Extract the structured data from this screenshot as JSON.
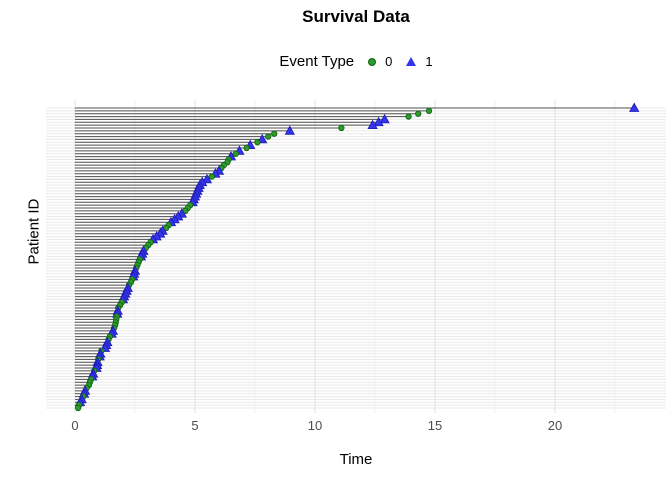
{
  "title": "Survival Data",
  "legend": {
    "title": "Event Type",
    "items": [
      {
        "label": "0",
        "marker": "circle-icon",
        "color": "#2c9b2c"
      },
      {
        "label": "1",
        "marker": "triangle-icon",
        "color": "#3434ef"
      }
    ]
  },
  "axes": {
    "x_label": "Time",
    "y_label": "Patient ID",
    "x_ticks": [
      0,
      5,
      10,
      15,
      20
    ],
    "x_minor_ticks": [
      2.5,
      7.5,
      12.5,
      17.5,
      22.5
    ],
    "y_tick_labels_hidden": true
  },
  "colors": {
    "event0": "#2c9b2c",
    "event0_stroke": "#156615",
    "event1": "#3434ef",
    "event1_stroke": "#1e1eb4",
    "segment": "#4f4f4f",
    "grid_major": "#e2e2e2",
    "grid_minor": "#efefef",
    "grid_row": "#e9e9e9",
    "tick_text": "#4d4d4d",
    "background": "#ffffff"
  },
  "chart_data": {
    "type": "scatter",
    "subtype": "event-segment-plot (horizontal line per patient from 0 to event time, marker at end)",
    "title": "Survival Data",
    "xlabel": "Time",
    "ylabel": "Patient ID",
    "xlim": [
      0,
      24.6
    ],
    "x_ticks": [
      0,
      5,
      10,
      15,
      20
    ],
    "legend_position": "top",
    "grid": true,
    "n_patients": 106,
    "columns": [
      "time",
      "event_type"
    ],
    "order": "rows listed top of plot (longest time) to bottom (shortest time)",
    "patients": [
      [
        23.3,
        1
      ],
      [
        14.75,
        0
      ],
      [
        14.3,
        0
      ],
      [
        13.9,
        0
      ],
      [
        12.9,
        1
      ],
      [
        12.65,
        1
      ],
      [
        12.4,
        1
      ],
      [
        11.1,
        0
      ],
      [
        8.95,
        1
      ],
      [
        8.3,
        0
      ],
      [
        8.05,
        0
      ],
      [
        7.8,
        1
      ],
      [
        7.6,
        0
      ],
      [
        7.3,
        1
      ],
      [
        7.15,
        0
      ],
      [
        6.85,
        1
      ],
      [
        6.7,
        0
      ],
      [
        6.5,
        1
      ],
      [
        6.4,
        0
      ],
      [
        6.35,
        0
      ],
      [
        6.2,
        0
      ],
      [
        6.1,
        0
      ],
      [
        6.0,
        1
      ],
      [
        5.85,
        1
      ],
      [
        5.7,
        0
      ],
      [
        5.5,
        1
      ],
      [
        5.3,
        1
      ],
      [
        5.2,
        1
      ],
      [
        5.15,
        1
      ],
      [
        5.1,
        1
      ],
      [
        5.05,
        1
      ],
      [
        5.0,
        1
      ],
      [
        4.95,
        1
      ],
      [
        4.9,
        1
      ],
      [
        4.8,
        0
      ],
      [
        4.7,
        0
      ],
      [
        4.6,
        0
      ],
      [
        4.45,
        1
      ],
      [
        4.3,
        1
      ],
      [
        4.15,
        1
      ],
      [
        4.0,
        1
      ],
      [
        3.9,
        0
      ],
      [
        3.8,
        0
      ],
      [
        3.65,
        1
      ],
      [
        3.55,
        1
      ],
      [
        3.4,
        1
      ],
      [
        3.25,
        1
      ],
      [
        3.15,
        0
      ],
      [
        3.05,
        0
      ],
      [
        2.95,
        0
      ],
      [
        2.85,
        1
      ],
      [
        2.8,
        1
      ],
      [
        2.75,
        1
      ],
      [
        2.7,
        0
      ],
      [
        2.65,
        0
      ],
      [
        2.6,
        0
      ],
      [
        2.55,
        0
      ],
      [
        2.5,
        1
      ],
      [
        2.47,
        1
      ],
      [
        2.43,
        1
      ],
      [
        2.38,
        0
      ],
      [
        2.33,
        0
      ],
      [
        2.25,
        0
      ],
      [
        2.2,
        1
      ],
      [
        2.15,
        1
      ],
      [
        2.1,
        1
      ],
      [
        2.05,
        1
      ],
      [
        2.0,
        1
      ],
      [
        1.95,
        0
      ],
      [
        1.88,
        0
      ],
      [
        1.8,
        0
      ],
      [
        1.78,
        1
      ],
      [
        1.76,
        1
      ],
      [
        1.74,
        0
      ],
      [
        1.72,
        0
      ],
      [
        1.7,
        0
      ],
      [
        1.67,
        0
      ],
      [
        1.63,
        0
      ],
      [
        1.58,
        1
      ],
      [
        1.53,
        1
      ],
      [
        1.45,
        0
      ],
      [
        1.4,
        0
      ],
      [
        1.35,
        1
      ],
      [
        1.3,
        1
      ],
      [
        1.25,
        1
      ],
      [
        1.1,
        0
      ],
      [
        1.06,
        1
      ],
      [
        1.03,
        1
      ],
      [
        0.97,
        0
      ],
      [
        0.94,
        1
      ],
      [
        0.92,
        1
      ],
      [
        0.9,
        1
      ],
      [
        0.8,
        0
      ],
      [
        0.76,
        1
      ],
      [
        0.72,
        1
      ],
      [
        0.67,
        0
      ],
      [
        0.62,
        0
      ],
      [
        0.58,
        0
      ],
      [
        0.49,
        0
      ],
      [
        0.42,
        1
      ],
      [
        0.38,
        1
      ],
      [
        0.35,
        0
      ],
      [
        0.28,
        1
      ],
      [
        0.21,
        1
      ],
      [
        0.17,
        0
      ],
      [
        0.13,
        0
      ]
    ]
  }
}
